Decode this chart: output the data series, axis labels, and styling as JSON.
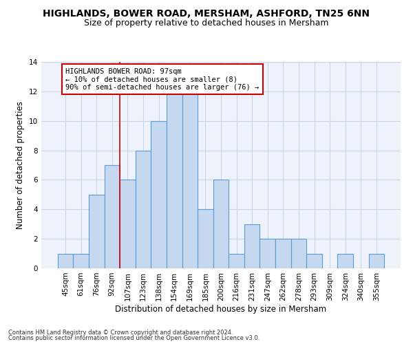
{
  "title1": "HIGHLANDS, BOWER ROAD, MERSHAM, ASHFORD, TN25 6NN",
  "title2": "Size of property relative to detached houses in Mersham",
  "xlabel": "Distribution of detached houses by size in Mersham",
  "ylabel": "Number of detached properties",
  "categories": [
    "45sqm",
    "61sqm",
    "76sqm",
    "92sqm",
    "107sqm",
    "123sqm",
    "138sqm",
    "154sqm",
    "169sqm",
    "185sqm",
    "200sqm",
    "216sqm",
    "231sqm",
    "247sqm",
    "262sqm",
    "278sqm",
    "293sqm",
    "309sqm",
    "324sqm",
    "340sqm",
    "355sqm"
  ],
  "values": [
    1,
    1,
    5,
    7,
    6,
    8,
    10,
    12,
    12,
    4,
    6,
    1,
    3,
    2,
    2,
    2,
    1,
    0,
    1,
    0,
    1
  ],
  "bar_color": "#c5d8f0",
  "bar_edge_color": "#5b9bd5",
  "annotation_text": "HIGHLANDS BOWER ROAD: 97sqm\n← 10% of detached houses are smaller (8)\n90% of semi-detached houses are larger (76) →",
  "annotation_box_color": "#ffffff",
  "annotation_box_edge": "#cc0000",
  "vline_color": "#cc0000",
  "footer1": "Contains HM Land Registry data © Crown copyright and database right 2024.",
  "footer2": "Contains public sector information licensed under the Open Government Licence v3.0.",
  "ylim": [
    0,
    14
  ],
  "yticks": [
    0,
    2,
    4,
    6,
    8,
    10,
    12,
    14
  ],
  "grid_color": "#c8d4e8",
  "bg_color": "#eef3fb",
  "title1_fontsize": 10,
  "title2_fontsize": 9,
  "tick_fontsize": 7.5,
  "ylabel_fontsize": 8.5,
  "xlabel_fontsize": 8.5,
  "annot_fontsize": 7.5,
  "footer_fontsize": 6.0
}
